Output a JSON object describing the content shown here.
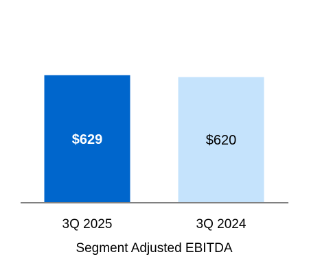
{
  "chart_data": {
    "type": "bar",
    "categories": [
      "3Q 2025",
      "3Q 2024"
    ],
    "values": [
      629,
      620
    ],
    "data_labels": [
      "$629",
      "$620"
    ],
    "title": "",
    "xlabel": "Segment Adjusted EBITDA",
    "ylabel": "",
    "ylim": [
      0,
      1000
    ],
    "grid": false,
    "legend": "none",
    "bar_colors": [
      "#0066CC",
      "#C5E3FC"
    ],
    "label_colors": [
      "#FFFFFF",
      "#000000"
    ],
    "label_bold": [
      true,
      false
    ],
    "axis_color": "#808080"
  }
}
